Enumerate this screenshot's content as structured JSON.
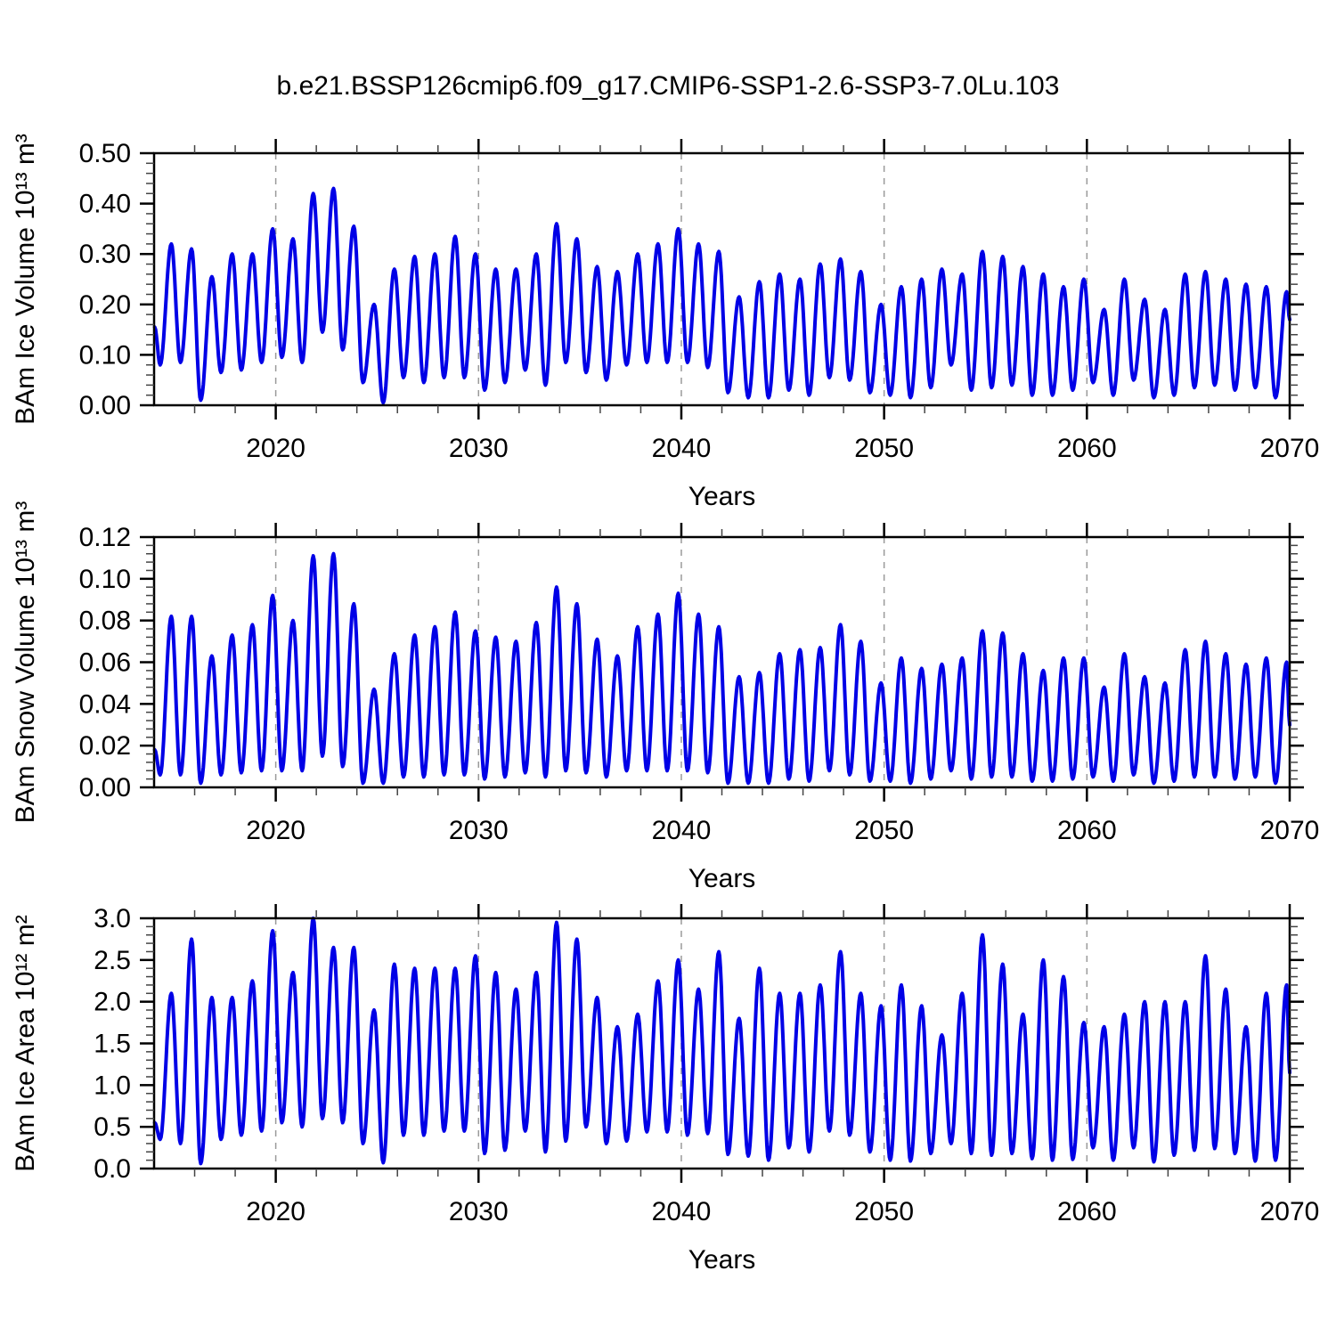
{
  "title": "b.e21.BSSP126cmip6.f09_g17.CMIP6-SSP1-2.6-SSP3-7.0Lu.103",
  "colors": {
    "line": "#0000e6",
    "axis": "#000000",
    "minor_tick": "#444444",
    "grid": "#9a9a9a",
    "background": "#ffffff"
  },
  "years": [
    2014,
    2015,
    2016,
    2017,
    2018,
    2019,
    2020,
    2021,
    2022,
    2023,
    2024,
    2025,
    2026,
    2027,
    2028,
    2029,
    2030,
    2031,
    2032,
    2033,
    2034,
    2035,
    2036,
    2037,
    2038,
    2039,
    2040,
    2041,
    2042,
    2043,
    2044,
    2045,
    2046,
    2047,
    2048,
    2049,
    2050,
    2051,
    2052,
    2053,
    2054,
    2055,
    2056,
    2057,
    2058,
    2059,
    2060,
    2061,
    2062,
    2063,
    2064,
    2065,
    2066,
    2067,
    2068,
    2069
  ],
  "chart_data": [
    {
      "type": "line",
      "ylabel": "BAm Ice Volume 10¹³ m³",
      "xlabel": "Years",
      "x_range": [
        2014,
        2070
      ],
      "y_range": [
        0,
        0.5
      ],
      "x_ticks": [
        2020,
        2030,
        2040,
        2050,
        2060,
        2070
      ],
      "x_minor_step": 2,
      "y_ticks": [
        0.0,
        0.1,
        0.2,
        0.3,
        0.4,
        0.5
      ],
      "y_minor_step": 0.02,
      "y_tick_decimals": 2,
      "grid_x": [
        2020,
        2030,
        2040,
        2050,
        2060
      ],
      "legend": "none",
      "grid": "vertical-dashed-decades",
      "series": {
        "name": "bam-ice-volume",
        "annual_max": [
          0.32,
          0.31,
          0.255,
          0.3,
          0.3,
          0.35,
          0.33,
          0.42,
          0.43,
          0.355,
          0.2,
          0.27,
          0.295,
          0.3,
          0.335,
          0.3,
          0.27,
          0.27,
          0.3,
          0.36,
          0.33,
          0.275,
          0.265,
          0.3,
          0.32,
          0.35,
          0.32,
          0.305,
          0.215,
          0.245,
          0.26,
          0.25,
          0.28,
          0.29,
          0.265,
          0.2,
          0.235,
          0.25,
          0.27,
          0.26,
          0.305,
          0.295,
          0.275,
          0.26,
          0.235,
          0.25,
          0.19,
          0.25,
          0.21,
          0.19,
          0.26,
          0.265,
          0.25,
          0.24,
          0.235,
          0.225
        ],
        "annual_min": [
          0.08,
          0.085,
          0.01,
          0.065,
          0.07,
          0.085,
          0.095,
          0.085,
          0.145,
          0.11,
          0.045,
          0.005,
          0.055,
          0.045,
          0.055,
          0.055,
          0.03,
          0.045,
          0.07,
          0.04,
          0.085,
          0.065,
          0.05,
          0.08,
          0.085,
          0.085,
          0.085,
          0.075,
          0.025,
          0.015,
          0.015,
          0.03,
          0.02,
          0.055,
          0.05,
          0.025,
          0.02,
          0.015,
          0.035,
          0.08,
          0.03,
          0.035,
          0.04,
          0.02,
          0.02,
          0.03,
          0.045,
          0.02,
          0.05,
          0.015,
          0.02,
          0.035,
          0.04,
          0.03,
          0.035,
          0.015
        ],
        "start_value": 0.155,
        "end_value": 0.17,
        "trough_phase": 0.3,
        "peak_phase": 0.85
      }
    },
    {
      "type": "line",
      "ylabel": "BAm Snow Volume 10¹³ m³",
      "xlabel": "Years",
      "x_range": [
        2014,
        2070
      ],
      "y_range": [
        0,
        0.12
      ],
      "x_ticks": [
        2020,
        2030,
        2040,
        2050,
        2060,
        2070
      ],
      "x_minor_step": 2,
      "y_ticks": [
        0.0,
        0.02,
        0.04,
        0.06,
        0.08,
        0.1,
        0.12
      ],
      "y_minor_step": 0.004,
      "y_tick_decimals": 2,
      "grid_x": [
        2020,
        2030,
        2040,
        2050,
        2060
      ],
      "legend": "none",
      "grid": "vertical-dashed-decades",
      "series": {
        "name": "bam-snow-volume",
        "annual_max": [
          0.082,
          0.082,
          0.063,
          0.073,
          0.078,
          0.092,
          0.08,
          0.111,
          0.112,
          0.088,
          0.047,
          0.064,
          0.073,
          0.077,
          0.084,
          0.075,
          0.072,
          0.07,
          0.079,
          0.096,
          0.088,
          0.071,
          0.063,
          0.077,
          0.083,
          0.093,
          0.083,
          0.077,
          0.053,
          0.055,
          0.064,
          0.066,
          0.067,
          0.078,
          0.07,
          0.05,
          0.062,
          0.057,
          0.059,
          0.062,
          0.075,
          0.074,
          0.064,
          0.056,
          0.062,
          0.062,
          0.048,
          0.064,
          0.053,
          0.05,
          0.066,
          0.07,
          0.064,
          0.059,
          0.062,
          0.06
        ],
        "annual_min": [
          0.006,
          0.006,
          0.002,
          0.006,
          0.007,
          0.008,
          0.008,
          0.008,
          0.015,
          0.01,
          0.002,
          0.002,
          0.005,
          0.005,
          0.006,
          0.006,
          0.004,
          0.005,
          0.007,
          0.005,
          0.008,
          0.007,
          0.005,
          0.008,
          0.008,
          0.008,
          0.008,
          0.007,
          0.002,
          0.002,
          0.002,
          0.004,
          0.003,
          0.008,
          0.006,
          0.003,
          0.003,
          0.002,
          0.004,
          0.008,
          0.004,
          0.005,
          0.005,
          0.003,
          0.003,
          0.004,
          0.005,
          0.003,
          0.006,
          0.002,
          0.003,
          0.005,
          0.005,
          0.004,
          0.005,
          0.002
        ],
        "start_value": 0.018,
        "end_value": 0.03,
        "trough_phase": 0.3,
        "peak_phase": 0.85
      }
    },
    {
      "type": "line",
      "ylabel": "BAm Ice Area 10¹² m²",
      "xlabel": "Years",
      "x_range": [
        2014,
        2070
      ],
      "y_range": [
        0,
        3.0
      ],
      "x_ticks": [
        2020,
        2030,
        2040,
        2050,
        2060,
        2070
      ],
      "x_minor_step": 2,
      "y_ticks": [
        0.0,
        0.5,
        1.0,
        1.5,
        2.0,
        2.5,
        3.0
      ],
      "y_minor_step": 0.1,
      "y_tick_decimals": 1,
      "grid_x": [
        2020,
        2030,
        2040,
        2050,
        2060
      ],
      "legend": "none",
      "grid": "vertical-dashed-decades",
      "series": {
        "name": "bam-ice-area",
        "annual_max": [
          2.1,
          2.75,
          2.05,
          2.05,
          2.25,
          2.85,
          2.35,
          3.0,
          2.65,
          2.65,
          1.9,
          2.45,
          2.4,
          2.4,
          2.4,
          2.55,
          2.35,
          2.15,
          2.35,
          2.95,
          2.75,
          2.05,
          1.7,
          1.85,
          2.25,
          2.5,
          2.15,
          2.6,
          1.8,
          2.4,
          2.1,
          2.1,
          2.2,
          2.6,
          2.1,
          1.95,
          2.2,
          1.95,
          1.6,
          2.1,
          2.8,
          2.45,
          1.85,
          2.5,
          2.3,
          1.75,
          1.7,
          1.85,
          2.0,
          2.0,
          2.0,
          2.55,
          2.15,
          1.7,
          2.1,
          2.2
        ],
        "annual_min": [
          0.35,
          0.3,
          0.06,
          0.35,
          0.4,
          0.45,
          0.55,
          0.5,
          0.6,
          0.55,
          0.3,
          0.07,
          0.4,
          0.4,
          0.45,
          0.45,
          0.18,
          0.22,
          0.45,
          0.2,
          0.33,
          0.5,
          0.3,
          0.33,
          0.44,
          0.44,
          0.4,
          0.42,
          0.17,
          0.15,
          0.1,
          0.25,
          0.2,
          0.45,
          0.4,
          0.2,
          0.1,
          0.09,
          0.18,
          0.3,
          0.18,
          0.16,
          0.18,
          0.12,
          0.1,
          0.11,
          0.25,
          0.1,
          0.25,
          0.08,
          0.16,
          0.22,
          0.24,
          0.18,
          0.09,
          0.1
        ],
        "start_value": 0.55,
        "end_value": 1.15,
        "trough_phase": 0.3,
        "peak_phase": 0.85
      }
    }
  ]
}
